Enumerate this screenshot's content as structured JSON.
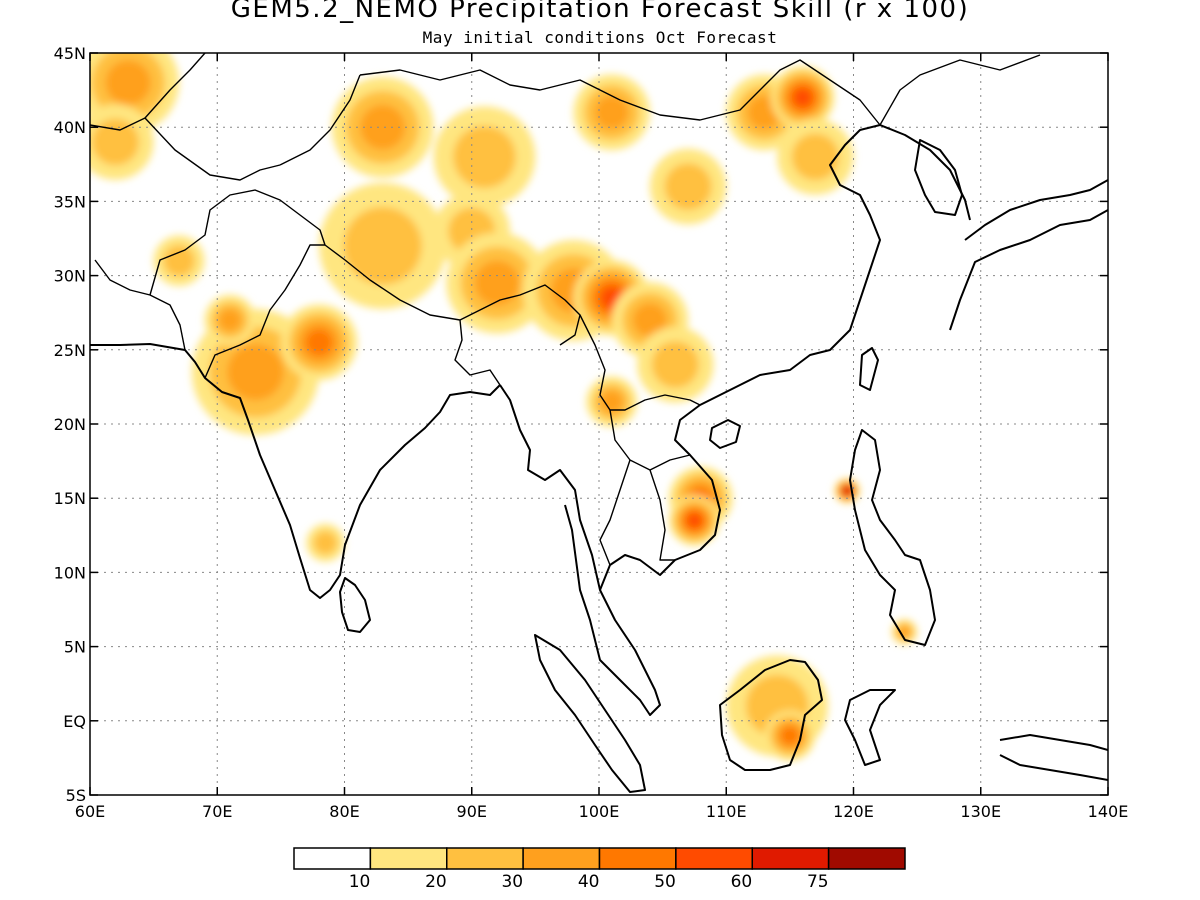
{
  "title": "GEM5.2_NEMO Precipitation Forecast Skill (r x 100)",
  "subtitle": "May initial conditions  Oct Forecast",
  "map": {
    "lon_range": [
      60,
      140
    ],
    "lat_range": [
      -5,
      45
    ],
    "x_ticks": [
      "60E",
      "70E",
      "80E",
      "90E",
      "100E",
      "110E",
      "120E",
      "130E",
      "140E"
    ],
    "y_ticks": [
      "45N",
      "40N",
      "35N",
      "30N",
      "25N",
      "20N",
      "15N",
      "10N",
      "5N",
      "EQ",
      "5S"
    ],
    "colorbar": {
      "labels": [
        "10",
        "20",
        "30",
        "40",
        "50",
        "60",
        "75"
      ],
      "colors": [
        "#ffffff",
        "#ffe680",
        "#ffc040",
        "#ffa01e",
        "#ff7800",
        "#ff4b00",
        "#e01a00",
        "#a00a00"
      ]
    }
  },
  "chart_data": {
    "type": "heatmap",
    "title": "GEM5.2_NEMO Precipitation Forecast Skill (r x 100)",
    "subtitle": "May initial conditions  Oct Forecast",
    "xlim": [
      60,
      140
    ],
    "ylim": [
      -5,
      45
    ],
    "levels": [
      10,
      20,
      30,
      40,
      50,
      60,
      75
    ],
    "regions": [
      {
        "lon": 63,
        "lat": 43,
        "r": 4,
        "level": 30
      },
      {
        "lon": 62,
        "lat": 39,
        "r": 3,
        "level": 20
      },
      {
        "lon": 67,
        "lat": 31,
        "r": 2,
        "level": 20
      },
      {
        "lon": 73,
        "lat": 23.5,
        "r": 5,
        "level": 30
      },
      {
        "lon": 78,
        "lat": 25.5,
        "r": 3,
        "level": 40
      },
      {
        "lon": 71,
        "lat": 27,
        "r": 2,
        "level": 30
      },
      {
        "lon": 78.5,
        "lat": 12,
        "r": 1.5,
        "level": 20
      },
      {
        "lon": 83,
        "lat": 32,
        "r": 5,
        "level": 20
      },
      {
        "lon": 83,
        "lat": 40,
        "r": 4,
        "level": 30
      },
      {
        "lon": 91,
        "lat": 38,
        "r": 4,
        "level": 20
      },
      {
        "lon": 90,
        "lat": 33,
        "r": 3,
        "level": 20
      },
      {
        "lon": 92,
        "lat": 29.5,
        "r": 4,
        "level": 30
      },
      {
        "lon": 98,
        "lat": 29,
        "r": 4,
        "level": 30
      },
      {
        "lon": 101,
        "lat": 28.5,
        "r": 3,
        "level": 50
      },
      {
        "lon": 104,
        "lat": 27,
        "r": 3,
        "level": 30
      },
      {
        "lon": 106,
        "lat": 24,
        "r": 3,
        "level": 20
      },
      {
        "lon": 101,
        "lat": 21.5,
        "r": 2,
        "level": 30
      },
      {
        "lon": 101,
        "lat": 41,
        "r": 3,
        "level": 30
      },
      {
        "lon": 107,
        "lat": 36,
        "r": 3,
        "level": 20
      },
      {
        "lon": 113,
        "lat": 41,
        "r": 3,
        "level": 30
      },
      {
        "lon": 116,
        "lat": 42,
        "r": 2.5,
        "level": 50
      },
      {
        "lon": 117,
        "lat": 38,
        "r": 3,
        "level": 20
      },
      {
        "lon": 108,
        "lat": 15,
        "r": 2.5,
        "level": 40
      },
      {
        "lon": 107.5,
        "lat": 13.5,
        "r": 2,
        "level": 50
      },
      {
        "lon": 114,
        "lat": 1,
        "r": 4,
        "level": 20
      },
      {
        "lon": 115,
        "lat": -1,
        "r": 2,
        "level": 40
      },
      {
        "lon": 119.5,
        "lat": 15.5,
        "r": 1,
        "level": 60
      },
      {
        "lon": 124,
        "lat": 6,
        "r": 1,
        "level": 30
      }
    ]
  }
}
